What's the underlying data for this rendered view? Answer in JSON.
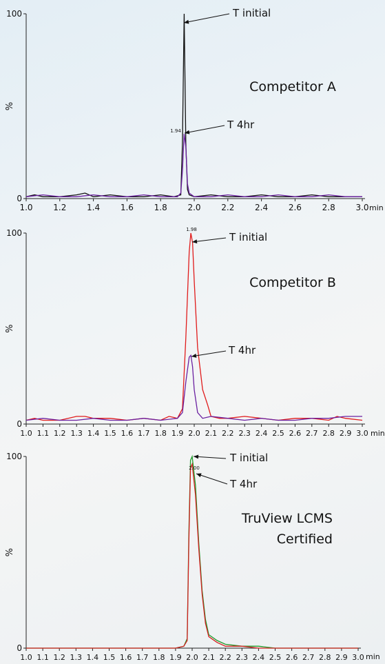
{
  "chart_data": [
    {
      "type": "line",
      "ylabel": "%",
      "x_unit": "min",
      "xlim": [
        1.0,
        3.0
      ],
      "ylim": [
        0,
        100
      ],
      "y_ticks": [
        "0",
        "100"
      ],
      "x_ticks": [
        "1.0",
        "1.2",
        "1.4",
        "1.6",
        "1.8",
        "2.0",
        "2.2",
        "2.4",
        "2.6",
        "2.8",
        "3.0"
      ],
      "peak_label": "1.94",
      "panel_label": "Competitor A",
      "annotations": [
        "T initial",
        "T 4hr"
      ],
      "series": [
        {
          "name": "T initial",
          "color": "#111111",
          "x": [
            1.0,
            1.05,
            1.1,
            1.2,
            1.3,
            1.35,
            1.4,
            1.5,
            1.6,
            1.7,
            1.8,
            1.88,
            1.92,
            1.93,
            1.94,
            1.95,
            1.96,
            1.97,
            2.0,
            2.1,
            2.2,
            2.3,
            2.4,
            2.5,
            2.6,
            2.7,
            2.8,
            2.9,
            3.0
          ],
          "y": [
            1,
            2,
            1,
            1,
            2,
            3,
            1,
            2,
            1,
            1,
            2,
            1,
            2,
            30,
            100,
            30,
            5,
            2,
            1,
            2,
            1,
            1,
            2,
            1,
            1,
            2,
            1,
            1,
            1
          ]
        },
        {
          "name": "T 4hr",
          "color": "#6a1fa0",
          "x": [
            1.0,
            1.1,
            1.2,
            1.3,
            1.4,
            1.5,
            1.6,
            1.7,
            1.8,
            1.9,
            1.92,
            1.93,
            1.94,
            1.95,
            1.96,
            1.97,
            2.0,
            2.1,
            2.2,
            2.3,
            2.4,
            2.5,
            2.6,
            2.7,
            2.8,
            2.9,
            3.0
          ],
          "y": [
            1,
            2,
            1,
            1,
            2,
            1,
            1,
            2,
            1,
            1,
            3,
            15,
            35,
            28,
            8,
            3,
            1,
            1,
            2,
            1,
            1,
            2,
            1,
            1,
            2,
            1,
            1
          ]
        }
      ]
    },
    {
      "type": "line",
      "ylabel": "%",
      "x_unit": "min",
      "xlim": [
        1.0,
        3.0
      ],
      "ylim": [
        0,
        100
      ],
      "y_ticks": [
        "0",
        "100"
      ],
      "x_ticks": [
        "1.0",
        "1.1",
        "1.2",
        "1.3",
        "1.4",
        "1.5",
        "1.6",
        "1.7",
        "1.8",
        "1.9",
        "2.0",
        "2.1",
        "2.2",
        "2.3",
        "2.4",
        "2.5",
        "2.6",
        "2.7",
        "2.8",
        "2.9",
        "3.0"
      ],
      "peak_label": "1.98",
      "panel_label": "Competitor B",
      "annotations": [
        "T initial",
        "T 4hr"
      ],
      "series": [
        {
          "name": "T initial",
          "color": "#e01a1a",
          "x": [
            1.0,
            1.05,
            1.1,
            1.2,
            1.3,
            1.35,
            1.4,
            1.5,
            1.6,
            1.7,
            1.8,
            1.85,
            1.9,
            1.93,
            1.95,
            1.97,
            1.98,
            1.99,
            2.0,
            2.02,
            2.05,
            2.08,
            2.1,
            2.15,
            2.2,
            2.3,
            2.4,
            2.5,
            2.6,
            2.7,
            2.8,
            2.85,
            2.9,
            3.0
          ],
          "y": [
            2,
            3,
            2,
            2,
            4,
            4,
            3,
            3,
            2,
            3,
            2,
            4,
            3,
            8,
            45,
            90,
            100,
            95,
            75,
            40,
            18,
            10,
            4,
            3,
            3,
            4,
            3,
            2,
            3,
            3,
            2,
            4,
            3,
            2
          ]
        },
        {
          "name": "T 4hr",
          "color": "#6a1fa0",
          "x": [
            1.0,
            1.1,
            1.2,
            1.3,
            1.4,
            1.5,
            1.6,
            1.7,
            1.8,
            1.9,
            1.93,
            1.95,
            1.97,
            1.98,
            1.99,
            2.0,
            2.02,
            2.05,
            2.1,
            2.2,
            2.3,
            2.4,
            2.5,
            2.6,
            2.7,
            2.8,
            2.9,
            3.0
          ],
          "y": [
            2,
            3,
            2,
            2,
            3,
            2,
            2,
            3,
            2,
            3,
            6,
            22,
            35,
            36,
            30,
            18,
            6,
            3,
            4,
            3,
            2,
            3,
            2,
            2,
            3,
            3,
            4,
            4
          ]
        }
      ]
    },
    {
      "type": "line",
      "ylabel": "%",
      "x_unit": "min",
      "xlim": [
        1.0,
        3.0
      ],
      "ylim": [
        0,
        100
      ],
      "y_ticks": [
        "0",
        "100"
      ],
      "x_ticks": [
        "1.0",
        "1.1",
        "1.2",
        "1.3",
        "1.4",
        "1.5",
        "1.6",
        "1.7",
        "1.8",
        "1.9",
        "2.0",
        "2.1",
        "2.2",
        "2.3",
        "2.4",
        "2.5",
        "2.6",
        "2.7",
        "2.8",
        "2.9",
        "3.0"
      ],
      "peak_label": "2.00",
      "panel_label": "TruView LCMS Certified",
      "annotations": [
        "T initial",
        "T 4hr"
      ],
      "series": [
        {
          "name": "T initial",
          "color": "#1f9a2a",
          "x": [
            1.0,
            1.2,
            1.4,
            1.6,
            1.8,
            1.9,
            1.95,
            1.97,
            1.98,
            1.99,
            2.0,
            2.02,
            2.04,
            2.06,
            2.08,
            2.1,
            2.15,
            2.2,
            2.3,
            2.4,
            2.5,
            2.6,
            2.7,
            2.8,
            2.9,
            3.0
          ],
          "y": [
            0,
            0,
            0,
            0,
            0,
            0,
            1,
            5,
            60,
            98,
            100,
            85,
            55,
            30,
            15,
            7,
            4,
            2,
            1,
            1,
            0,
            0,
            0,
            0,
            0,
            0
          ]
        },
        {
          "name": "T 4hr",
          "color": "#d42020",
          "x": [
            1.0,
            1.2,
            1.4,
            1.6,
            1.8,
            1.9,
            1.95,
            1.97,
            1.98,
            1.99,
            2.0,
            2.02,
            2.04,
            2.06,
            2.08,
            2.1,
            2.15,
            2.2,
            2.3,
            2.4,
            2.5,
            2.6,
            2.7,
            2.8,
            2.9,
            3.0
          ],
          "y": [
            0,
            0,
            0,
            0,
            0,
            0,
            1,
            4,
            55,
            94,
            96,
            80,
            52,
            28,
            13,
            6,
            3,
            1,
            1,
            0,
            0,
            0,
            0,
            0,
            0,
            0
          ]
        }
      ]
    }
  ]
}
